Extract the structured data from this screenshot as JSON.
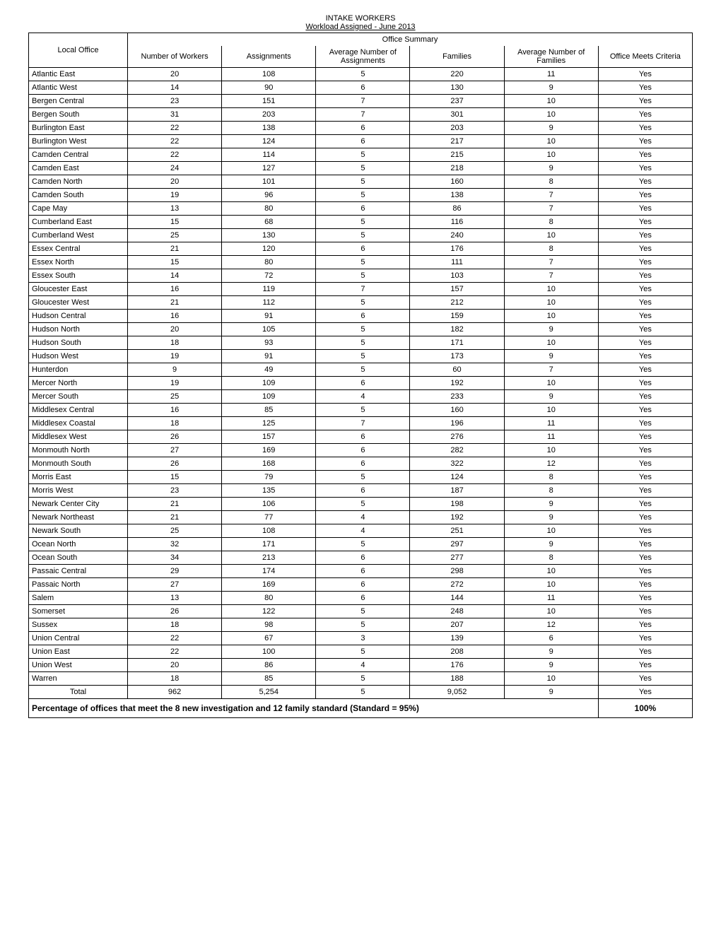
{
  "title1": "INTAKE WORKERS",
  "title2": "Workload Assigned - June 2013",
  "office_summary_label": "Office Summary",
  "headers": {
    "local_office": "Local Office",
    "workers": "Number of Workers",
    "assignments": "Assignments",
    "avg_assignments": "Average Number of Assignments",
    "families": "Families",
    "avg_families": "Average Number of Families",
    "criteria": "Office Meets Criteria"
  },
  "rows": [
    {
      "o": "Atlantic East",
      "w": "20",
      "a": "108",
      "aa": "5",
      "f": "220",
      "af": "11",
      "c": "Yes"
    },
    {
      "o": "Atlantic West",
      "w": "14",
      "a": "90",
      "aa": "6",
      "f": "130",
      "af": "9",
      "c": "Yes"
    },
    {
      "o": "Bergen Central",
      "w": "23",
      "a": "151",
      "aa": "7",
      "f": "237",
      "af": "10",
      "c": "Yes"
    },
    {
      "o": "Bergen South",
      "w": "31",
      "a": "203",
      "aa": "7",
      "f": "301",
      "af": "10",
      "c": "Yes"
    },
    {
      "o": "Burlington East",
      "w": "22",
      "a": "138",
      "aa": "6",
      "f": "203",
      "af": "9",
      "c": "Yes"
    },
    {
      "o": "Burlington West",
      "w": "22",
      "a": "124",
      "aa": "6",
      "f": "217",
      "af": "10",
      "c": "Yes"
    },
    {
      "o": "Camden Central",
      "w": "22",
      "a": "114",
      "aa": "5",
      "f": "215",
      "af": "10",
      "c": "Yes"
    },
    {
      "o": "Camden East",
      "w": "24",
      "a": "127",
      "aa": "5",
      "f": "218",
      "af": "9",
      "c": "Yes"
    },
    {
      "o": "Camden North",
      "w": "20",
      "a": "101",
      "aa": "5",
      "f": "160",
      "af": "8",
      "c": "Yes"
    },
    {
      "o": "Camden South",
      "w": "19",
      "a": "96",
      "aa": "5",
      "f": "138",
      "af": "7",
      "c": "Yes"
    },
    {
      "o": "Cape May",
      "w": "13",
      "a": "80",
      "aa": "6",
      "f": "86",
      "af": "7",
      "c": "Yes"
    },
    {
      "o": "Cumberland East",
      "w": "15",
      "a": "68",
      "aa": "5",
      "f": "116",
      "af": "8",
      "c": "Yes"
    },
    {
      "o": "Cumberland West",
      "w": "25",
      "a": "130",
      "aa": "5",
      "f": "240",
      "af": "10",
      "c": "Yes"
    },
    {
      "o": "Essex Central",
      "w": "21",
      "a": "120",
      "aa": "6",
      "f": "176",
      "af": "8",
      "c": "Yes"
    },
    {
      "o": "Essex North",
      "w": "15",
      "a": "80",
      "aa": "5",
      "f": "111",
      "af": "7",
      "c": "Yes"
    },
    {
      "o": "Essex South",
      "w": "14",
      "a": "72",
      "aa": "5",
      "f": "103",
      "af": "7",
      "c": "Yes"
    },
    {
      "o": "Gloucester East",
      "w": "16",
      "a": "119",
      "aa": "7",
      "f": "157",
      "af": "10",
      "c": "Yes"
    },
    {
      "o": "Gloucester West",
      "w": "21",
      "a": "112",
      "aa": "5",
      "f": "212",
      "af": "10",
      "c": "Yes"
    },
    {
      "o": "Hudson Central",
      "w": "16",
      "a": "91",
      "aa": "6",
      "f": "159",
      "af": "10",
      "c": "Yes"
    },
    {
      "o": "Hudson North",
      "w": "20",
      "a": "105",
      "aa": "5",
      "f": "182",
      "af": "9",
      "c": "Yes"
    },
    {
      "o": "Hudson South",
      "w": "18",
      "a": "93",
      "aa": "5",
      "f": "171",
      "af": "10",
      "c": "Yes"
    },
    {
      "o": "Hudson West",
      "w": "19",
      "a": "91",
      "aa": "5",
      "f": "173",
      "af": "9",
      "c": "Yes"
    },
    {
      "o": "Hunterdon",
      "w": "9",
      "a": "49",
      "aa": "5",
      "f": "60",
      "af": "7",
      "c": "Yes"
    },
    {
      "o": "Mercer North",
      "w": "19",
      "a": "109",
      "aa": "6",
      "f": "192",
      "af": "10",
      "c": "Yes"
    },
    {
      "o": "Mercer South",
      "w": "25",
      "a": "109",
      "aa": "4",
      "f": "233",
      "af": "9",
      "c": "Yes"
    },
    {
      "o": "Middlesex Central",
      "w": "16",
      "a": "85",
      "aa": "5",
      "f": "160",
      "af": "10",
      "c": "Yes"
    },
    {
      "o": "Middlesex Coastal",
      "w": "18",
      "a": "125",
      "aa": "7",
      "f": "196",
      "af": "11",
      "c": "Yes"
    },
    {
      "o": "Middlesex West",
      "w": "26",
      "a": "157",
      "aa": "6",
      "f": "276",
      "af": "11",
      "c": "Yes"
    },
    {
      "o": "Monmouth North",
      "w": "27",
      "a": "169",
      "aa": "6",
      "f": "282",
      "af": "10",
      "c": "Yes"
    },
    {
      "o": "Monmouth South",
      "w": "26",
      "a": "168",
      "aa": "6",
      "f": "322",
      "af": "12",
      "c": "Yes"
    },
    {
      "o": "Morris East",
      "w": "15",
      "a": "79",
      "aa": "5",
      "f": "124",
      "af": "8",
      "c": "Yes"
    },
    {
      "o": "Morris West",
      "w": "23",
      "a": "135",
      "aa": "6",
      "f": "187",
      "af": "8",
      "c": "Yes"
    },
    {
      "o": "Newark Center City",
      "w": "21",
      "a": "106",
      "aa": "5",
      "f": "198",
      "af": "9",
      "c": "Yes"
    },
    {
      "o": "Newark Northeast",
      "w": "21",
      "a": "77",
      "aa": "4",
      "f": "192",
      "af": "9",
      "c": "Yes"
    },
    {
      "o": "Newark South",
      "w": "25",
      "a": "108",
      "aa": "4",
      "f": "251",
      "af": "10",
      "c": "Yes"
    },
    {
      "o": "Ocean North",
      "w": "32",
      "a": "171",
      "aa": "5",
      "f": "297",
      "af": "9",
      "c": "Yes"
    },
    {
      "o": "Ocean South",
      "w": "34",
      "a": "213",
      "aa": "6",
      "f": "277",
      "af": "8",
      "c": "Yes"
    },
    {
      "o": "Passaic Central",
      "w": "29",
      "a": "174",
      "aa": "6",
      "f": "298",
      "af": "10",
      "c": "Yes"
    },
    {
      "o": "Passaic North",
      "w": "27",
      "a": "169",
      "aa": "6",
      "f": "272",
      "af": "10",
      "c": "Yes"
    },
    {
      "o": "Salem",
      "w": "13",
      "a": "80",
      "aa": "6",
      "f": "144",
      "af": "11",
      "c": "Yes"
    },
    {
      "o": "Somerset",
      "w": "26",
      "a": "122",
      "aa": "5",
      "f": "248",
      "af": "10",
      "c": "Yes"
    },
    {
      "o": "Sussex",
      "w": "18",
      "a": "98",
      "aa": "5",
      "f": "207",
      "af": "12",
      "c": "Yes"
    },
    {
      "o": "Union Central",
      "w": "22",
      "a": "67",
      "aa": "3",
      "f": "139",
      "af": "6",
      "c": "Yes"
    },
    {
      "o": "Union East",
      "w": "22",
      "a": "100",
      "aa": "5",
      "f": "208",
      "af": "9",
      "c": "Yes"
    },
    {
      "o": "Union West",
      "w": "20",
      "a": "86",
      "aa": "4",
      "f": "176",
      "af": "9",
      "c": "Yes"
    },
    {
      "o": "Warren",
      "w": "18",
      "a": "85",
      "aa": "5",
      "f": "188",
      "af": "10",
      "c": "Yes"
    }
  ],
  "total": {
    "o": "Total",
    "w": "962",
    "a": "5,254",
    "aa": "5",
    "f": "9,052",
    "af": "9",
    "c": "Yes"
  },
  "footer": {
    "label": "Percentage of offices that meet the 8 new investigation and 12 family standard (Standard = 95%)",
    "value": "100%"
  },
  "style": {
    "font_family": "Arial",
    "font_size_pt": 8,
    "border_color": "#000000",
    "background": "#ffffff",
    "text_color": "#000000"
  }
}
